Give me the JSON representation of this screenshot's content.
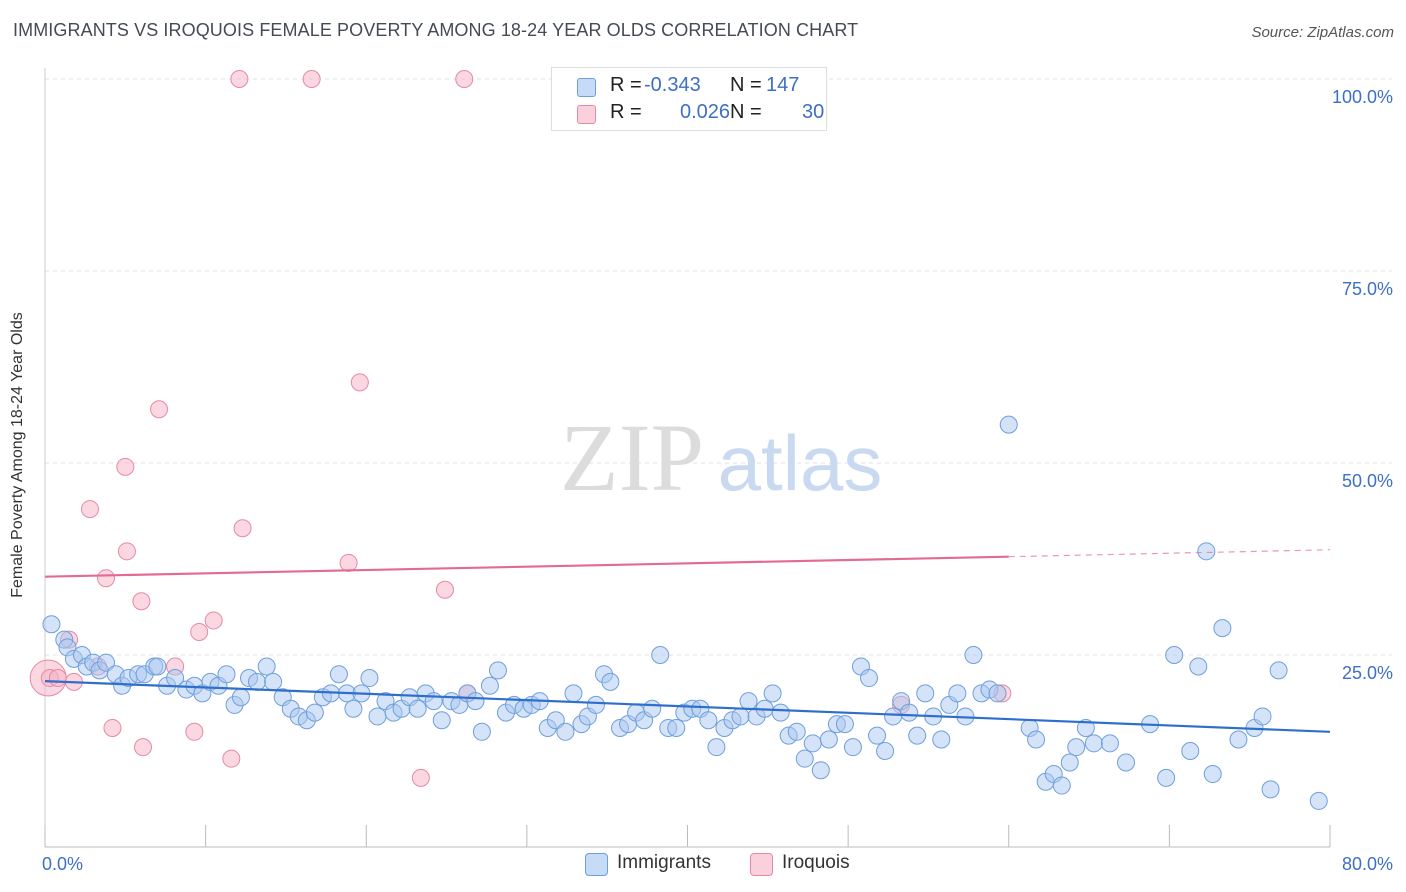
{
  "header": {
    "title": "IMMIGRANTS VS IROQUOIS FEMALE POVERTY AMONG 18-24 YEAR OLDS CORRELATION CHART",
    "source": "Source: ZipAtlas.com"
  },
  "watermark": {
    "zip": "ZIP",
    "atlas": "atlas"
  },
  "stats": [
    {
      "r_label": "R =",
      "r_value": "-0.343",
      "n_label": "N =",
      "n_value": "147",
      "color": "#a9c8f0"
    },
    {
      "r_label": "R =",
      "r_value": "0.026",
      "n_label": "N =",
      "n_value": "30",
      "color": "#f5b6c8"
    }
  ],
  "legend": [
    {
      "label": "Immigrants",
      "color": "#a9c8f0"
    },
    {
      "label": "Iroquois",
      "color": "#f5b6c8"
    }
  ],
  "chart_data": {
    "type": "scatter",
    "title": "IMMIGRANTS VS IROQUOIS FEMALE POVERTY AMONG 18-24 YEAR OLDS CORRELATION CHART",
    "xlabel": "",
    "ylabel": "Female Poverty Among 18-24 Year Olds",
    "xlim": [
      0,
      80
    ],
    "ylim": [
      0,
      100
    ],
    "x_tick_labels": [
      {
        "value": 0,
        "label": "0.0%"
      },
      {
        "value": 80,
        "label": "80.0%"
      }
    ],
    "y_tick_labels": [
      {
        "value": 25,
        "label": "25.0%"
      },
      {
        "value": 50,
        "label": "50.0%"
      },
      {
        "value": 75,
        "label": "75.0%"
      },
      {
        "value": 100,
        "label": "100.0%"
      }
    ],
    "grid": "horizontal dashed",
    "legend_position": "bottom-center",
    "series": [
      {
        "name": "Immigrants",
        "color": "#a9c8f0",
        "stroke": "#6f9fdc",
        "trend": {
          "x": [
            0,
            80
          ],
          "y": [
            21.6,
            15.0
          ],
          "color": "#2f6fcc"
        },
        "points": [
          [
            0.4,
            29
          ],
          [
            1.2,
            27
          ],
          [
            1.4,
            26
          ],
          [
            1.8,
            24.5
          ],
          [
            2.3,
            25
          ],
          [
            2.6,
            23.5
          ],
          [
            3.0,
            24
          ],
          [
            3.4,
            23
          ],
          [
            3.8,
            24
          ],
          [
            4.4,
            22.5
          ],
          [
            4.8,
            21
          ],
          [
            5.2,
            22
          ],
          [
            5.8,
            22.5
          ],
          [
            6.2,
            22.5
          ],
          [
            6.8,
            23.5
          ],
          [
            7.0,
            23.5
          ],
          [
            7.6,
            21
          ],
          [
            8.1,
            22
          ],
          [
            8.8,
            20.5
          ],
          [
            9.3,
            21
          ],
          [
            9.8,
            20
          ],
          [
            10.3,
            21.5
          ],
          [
            10.8,
            21
          ],
          [
            11.3,
            22.5
          ],
          [
            11.8,
            18.5
          ],
          [
            12.2,
            19.5
          ],
          [
            12.7,
            22
          ],
          [
            13.2,
            21.5
          ],
          [
            13.8,
            23.5
          ],
          [
            14.2,
            21.5
          ],
          [
            14.8,
            19.5
          ],
          [
            15.3,
            18
          ],
          [
            15.8,
            17
          ],
          [
            16.3,
            16.5
          ],
          [
            16.8,
            17.5
          ],
          [
            17.3,
            19.5
          ],
          [
            17.8,
            20
          ],
          [
            18.3,
            22.5
          ],
          [
            18.8,
            20
          ],
          [
            19.2,
            18
          ],
          [
            19.7,
            20
          ],
          [
            20.2,
            22
          ],
          [
            20.7,
            17
          ],
          [
            21.2,
            19
          ],
          [
            21.7,
            17.5
          ],
          [
            22.2,
            18
          ],
          [
            22.7,
            19.5
          ],
          [
            23.2,
            18
          ],
          [
            23.7,
            20
          ],
          [
            24.2,
            19
          ],
          [
            24.7,
            16.5
          ],
          [
            25.3,
            19
          ],
          [
            25.8,
            18.5
          ],
          [
            26.3,
            20
          ],
          [
            26.8,
            19
          ],
          [
            27.2,
            15
          ],
          [
            27.7,
            21
          ],
          [
            28.2,
            23
          ],
          [
            28.7,
            17.5
          ],
          [
            29.2,
            18.5
          ],
          [
            29.8,
            18
          ],
          [
            30.3,
            18.5
          ],
          [
            30.8,
            19
          ],
          [
            31.3,
            15.5
          ],
          [
            31.8,
            16.5
          ],
          [
            32.4,
            15
          ],
          [
            32.9,
            20
          ],
          [
            33.4,
            16
          ],
          [
            33.8,
            17
          ],
          [
            34.3,
            18.5
          ],
          [
            34.8,
            22.5
          ],
          [
            35.2,
            21.5
          ],
          [
            35.8,
            15.5
          ],
          [
            36.3,
            16
          ],
          [
            36.8,
            17.5
          ],
          [
            37.3,
            16.5
          ],
          [
            37.8,
            18
          ],
          [
            38.3,
            25
          ],
          [
            38.8,
            15.5
          ],
          [
            39.3,
            15.5
          ],
          [
            39.8,
            17.5
          ],
          [
            40.3,
            18
          ],
          [
            40.8,
            18
          ],
          [
            41.3,
            16.5
          ],
          [
            41.8,
            13
          ],
          [
            42.3,
            15.5
          ],
          [
            42.8,
            16.5
          ],
          [
            43.3,
            17
          ],
          [
            43.8,
            19
          ],
          [
            44.3,
            17
          ],
          [
            44.8,
            18
          ],
          [
            45.3,
            20
          ],
          [
            45.8,
            17.5
          ],
          [
            46.3,
            14.5
          ],
          [
            46.8,
            15
          ],
          [
            47.3,
            11.5
          ],
          [
            47.8,
            13.5
          ],
          [
            48.3,
            10
          ],
          [
            48.8,
            14
          ],
          [
            49.3,
            16
          ],
          [
            49.8,
            16
          ],
          [
            50.3,
            13
          ],
          [
            50.8,
            23.5
          ],
          [
            51.3,
            22
          ],
          [
            51.8,
            14.5
          ],
          [
            52.3,
            12.5
          ],
          [
            52.8,
            17
          ],
          [
            53.3,
            19
          ],
          [
            53.8,
            17.5
          ],
          [
            54.3,
            14.5
          ],
          [
            54.8,
            20
          ],
          [
            55.3,
            17
          ],
          [
            55.8,
            14
          ],
          [
            56.3,
            18.5
          ],
          [
            56.8,
            20
          ],
          [
            57.3,
            17
          ],
          [
            57.8,
            25
          ],
          [
            58.3,
            20
          ],
          [
            58.8,
            20.5
          ],
          [
            59.3,
            20
          ],
          [
            60.0,
            55
          ],
          [
            61.3,
            15.5
          ],
          [
            61.7,
            14
          ],
          [
            62.3,
            8.5
          ],
          [
            62.8,
            9.5
          ],
          [
            63.3,
            8
          ],
          [
            63.8,
            11
          ],
          [
            64.2,
            13
          ],
          [
            64.8,
            15.5
          ],
          [
            65.3,
            13.5
          ],
          [
            66.3,
            13.5
          ],
          [
            67.3,
            11
          ],
          [
            68.8,
            16
          ],
          [
            69.8,
            9
          ],
          [
            70.3,
            25
          ],
          [
            71.3,
            12.5
          ],
          [
            71.8,
            23.5
          ],
          [
            72.3,
            38.5
          ],
          [
            72.7,
            9.5
          ],
          [
            73.3,
            28.5
          ],
          [
            74.3,
            14
          ],
          [
            75.3,
            15.5
          ],
          [
            75.8,
            17
          ],
          [
            76.3,
            7.5
          ],
          [
            76.8,
            23
          ],
          [
            79.3,
            6
          ]
        ]
      },
      {
        "name": "Iroquois",
        "color": "#f5b6c8",
        "stroke": "#e58aa6",
        "trend": {
          "x": [
            0,
            60
          ],
          "y": [
            35.2,
            37.8
          ],
          "dashed_to": [
            80,
            38.7
          ],
          "color": "#e36b92"
        },
        "points": [
          [
            0.3,
            22
          ],
          [
            0.8,
            22
          ],
          [
            1.5,
            27
          ],
          [
            1.8,
            21.5
          ],
          [
            2.8,
            44
          ],
          [
            3.3,
            23.5
          ],
          [
            3.8,
            35
          ],
          [
            4.2,
            15.5
          ],
          [
            5.0,
            49.5
          ],
          [
            5.1,
            38.5
          ],
          [
            6.0,
            32
          ],
          [
            6.1,
            13
          ],
          [
            7.1,
            57
          ],
          [
            8.1,
            23.5
          ],
          [
            9.3,
            15
          ],
          [
            9.6,
            28
          ],
          [
            10.5,
            29.5
          ],
          [
            11.6,
            11.5
          ],
          [
            12.3,
            41.5
          ],
          [
            12.1,
            100
          ],
          [
            16.6,
            100
          ],
          [
            18.9,
            37
          ],
          [
            19.6,
            60.5
          ],
          [
            23.4,
            9
          ],
          [
            24.9,
            33.5
          ],
          [
            26.1,
            100
          ],
          [
            26.3,
            20
          ],
          [
            53.3,
            18.5
          ],
          [
            59.6,
            20
          ]
        ],
        "large_points": [
          [
            0.2,
            22
          ]
        ]
      }
    ]
  }
}
